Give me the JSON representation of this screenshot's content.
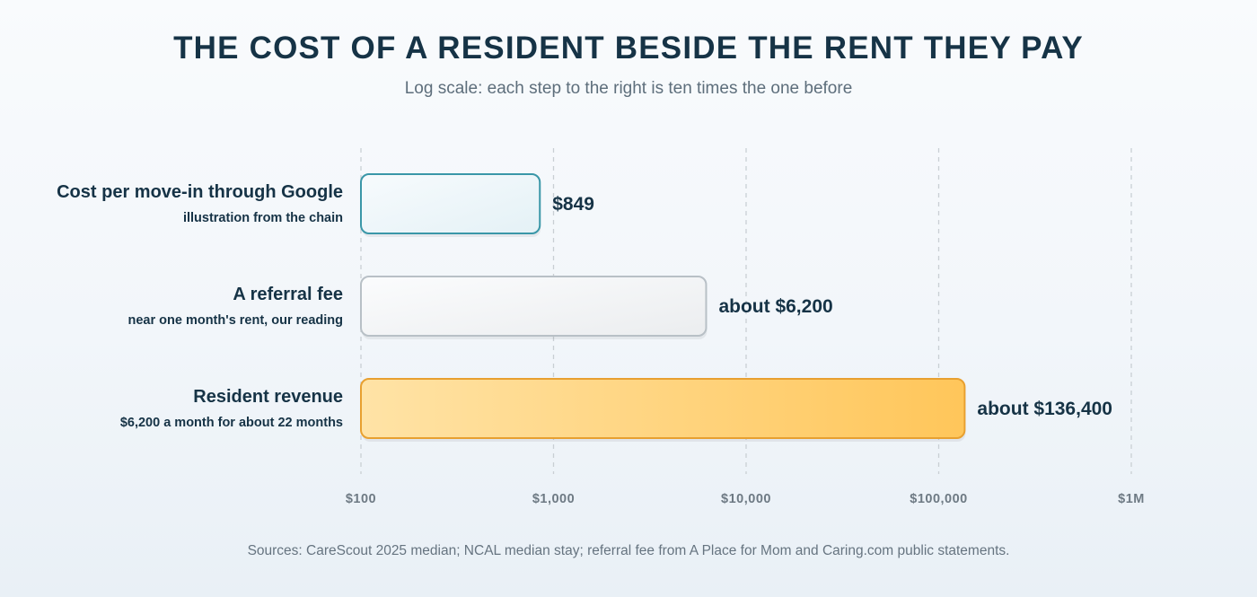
{
  "chart_data": {
    "type": "bar",
    "orientation": "horizontal",
    "title": "THE COST OF A RESIDENT BESIDE THE RENT THEY PAY",
    "subtitle": "Log scale: each step to the right is ten times the one before",
    "xscale": "log",
    "xlim": [
      100,
      1000000
    ],
    "ticks": [
      100,
      1000,
      10000,
      100000,
      1000000
    ],
    "tick_labels": [
      "$100",
      "$1,000",
      "$10,000",
      "$100,000",
      "$1M"
    ],
    "grid": true,
    "categories": [
      {
        "label": "Cost per move-in through Google",
        "sublabel": "illustration from the chain",
        "value": 849,
        "value_label": "$849",
        "color": "#3a97a8"
      },
      {
        "label": "A referral fee",
        "sublabel": "near one month's rent, our reading",
        "value": 6200,
        "value_label": "about $6,200",
        "color": "#b8c0c6"
      },
      {
        "label": "Resident revenue",
        "sublabel": "$6,200 a month for about 22 months",
        "value": 136400,
        "value_label": "about $136,400",
        "color": "#e8a030"
      }
    ],
    "source": "Sources: CareScout 2025 median; NCAL median stay; referral fee from A Place for Mom and Caring.com public statements."
  }
}
